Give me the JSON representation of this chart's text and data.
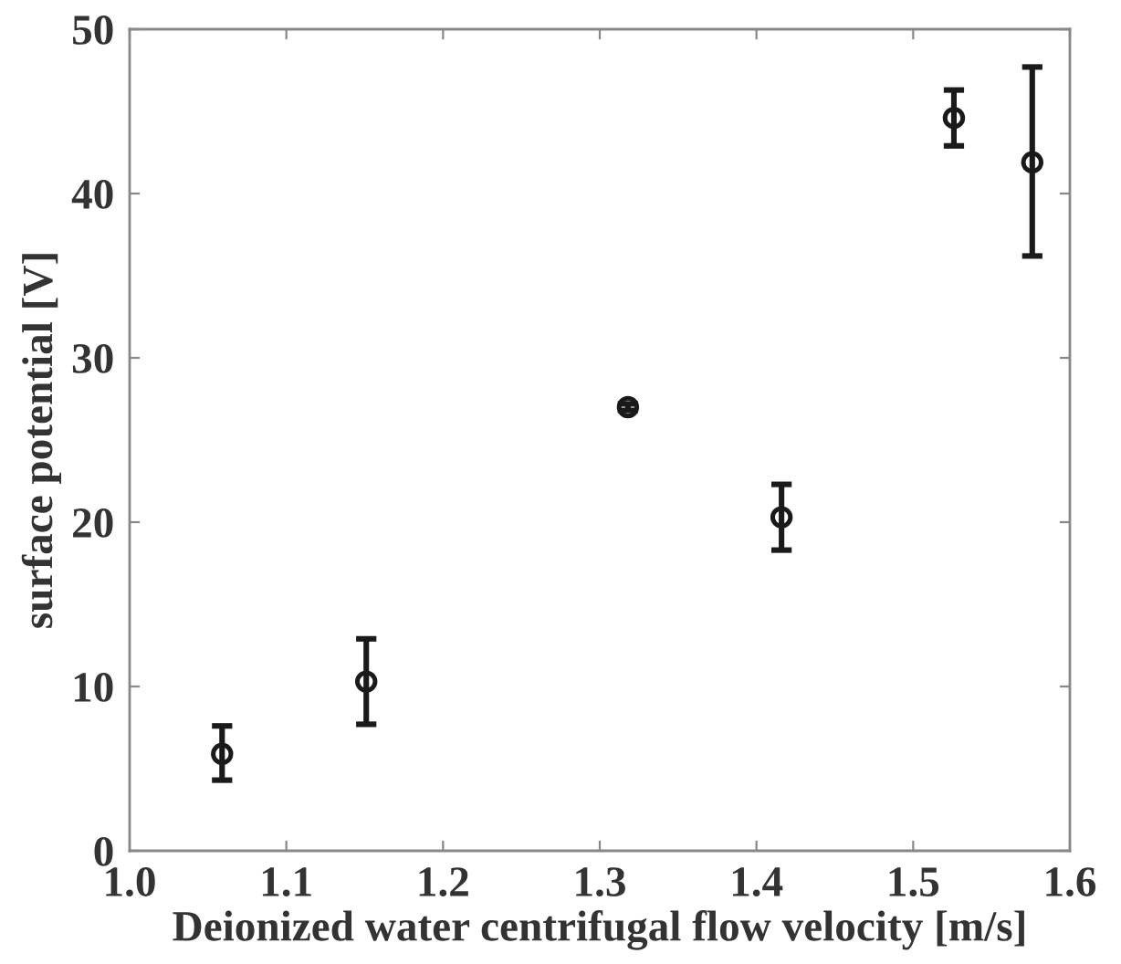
{
  "chart_data": {
    "type": "scatter",
    "xlabel": "Deionized water centrifugal flow velocity [m/s]",
    "ylabel": "surface potential [V]",
    "x": [
      1.059,
      1.151,
      1.318,
      1.416,
      1.526,
      1.576
    ],
    "series": [
      {
        "color": "#1a1a1a",
        "values": [
          5.9,
          10.3,
          27.0,
          20.3,
          44.6,
          41.9
        ],
        "errors": [
          [
            4.3,
            7.6
          ],
          [
            7.7,
            12.9
          ],
          [
            26.8,
            27.2
          ],
          [
            18.3,
            22.3
          ],
          [
            42.9,
            46.3
          ],
          [
            36.2,
            47.7
          ]
        ]
      }
    ],
    "xlim": [
      1.0,
      1.6
    ],
    "xticks": [
      {
        "value": 1.0,
        "label": "1.0"
      },
      1.1,
      1.2,
      1.3,
      1.4,
      1.5,
      1.6
    ],
    "ylim": [
      0,
      50
    ],
    "yticks": [
      0,
      10,
      20,
      30,
      40,
      50
    ],
    "marker": "circle",
    "grid": false,
    "legend": false
  }
}
